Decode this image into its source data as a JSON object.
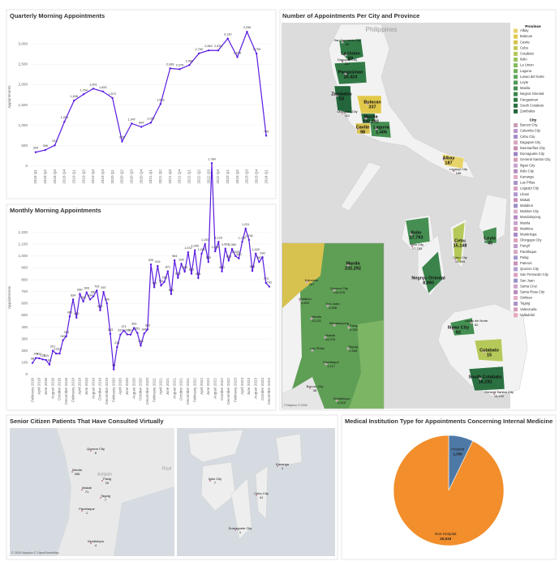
{
  "chart_data": [
    {
      "type": "line",
      "title": "Quarterly Morning Appointments",
      "y_label": "Appointments",
      "color": "#5a1be0",
      "grid": true,
      "categories": [
        "2018 Q1",
        "2018 Q2",
        "2018 Q3",
        "2018 Q4",
        "2019 Q1",
        "2019 Q2",
        "2019 Q3",
        "2019 Q4",
        "2020 Q1",
        "2020 Q2",
        "2020 Q3",
        "2020 Q4",
        "2021 Q1",
        "2021 Q2",
        "2021 Q3",
        "2021 Q4",
        "2022 Q1",
        "2022 Q2",
        "2022 Q3",
        "2022 Q4",
        "2023 Q1",
        "2023 Q2",
        "2023 Q3",
        "2023 Q4",
        "2024 Q1"
      ],
      "values": [
        343,
        396,
        513,
        1091,
        1608,
        1764,
        1901,
        1833,
        1672,
        606,
        1047,
        964,
        1067,
        1526,
        2399,
        2379,
        2480,
        2765,
        2840,
        2839,
        3130,
        2676,
        3296,
        2759,
        749
      ],
      "value_labels": [
        "343",
        "396",
        "513",
        "1,091",
        "1,608",
        "1,764",
        "1,901",
        "1,833",
        "1,672",
        "606",
        "1,047",
        "964",
        "1,067",
        "1,526",
        "2,399",
        "2,379",
        "2,480",
        "2,765",
        "2,840",
        "2,839",
        "3,130",
        "2,676",
        "3,296",
        "2,759",
        "749"
      ],
      "ylim": [
        0,
        3400
      ],
      "yticks": [
        0,
        500,
        {
          "value": 1000,
          "label": "1,000"
        },
        {
          "value": 1500,
          "label": "1,500"
        },
        {
          "value": 2000,
          "label": "2,000"
        },
        {
          "value": 2500,
          "label": "2,500"
        },
        {
          "value": 3000,
          "label": "3,000"
        }
      ]
    },
    {
      "type": "line",
      "title": "Monthly Morning Appointments",
      "y_label": "Appointments",
      "color": "#5a1be0",
      "grid": true,
      "categories": [
        "February 2018",
        null,
        "April 2018",
        null,
        "June 2018",
        null,
        "August 2018",
        null,
        "October 2018",
        null,
        "December 2018",
        null,
        "February 2019",
        null,
        "April 2019",
        null,
        "June 2019",
        null,
        "August 2019",
        null,
        "October 2019",
        null,
        "December 2019",
        null,
        "February 2020",
        null,
        "April 2020",
        null,
        "June 2020",
        null,
        "August 2020",
        null,
        "October 2020",
        null,
        "December 2020",
        null,
        "February 2021",
        null,
        "April 2021",
        null,
        "June 2021",
        null,
        "August 2021",
        null,
        "October 2021",
        null,
        "December 2021",
        null,
        "February 2022",
        null,
        "April 2022",
        null,
        "June 2022",
        null,
        "August 2022",
        null,
        "October 2022",
        null,
        "December 2022",
        null,
        "February 2023",
        null,
        "April 2023",
        null,
        "June 2023",
        null,
        "August 2023",
        null,
        "October 2023",
        null,
        "December 2023"
      ],
      "values": [
        98,
        140,
        137,
        128,
        123,
        84,
        201,
        177,
        177,
        289,
        323,
        490,
        634,
        480,
        680,
        616,
        693,
        634,
        660,
        709,
        542,
        697,
        600,
        343,
        44,
        231,
        337,
        371,
        339,
        337,
        393,
        351,
        245,
        346,
        380,
        929,
        737,
        916,
        751,
        783,
        871,
        679,
        964,
        816,
        934,
        869,
        1032,
        851,
        1049,
        814,
        1020,
        1100,
        950,
        1784,
        1040,
        1120,
        870,
        1063,
        963,
        1060,
        1000,
        980,
        1120,
        1231,
        1136,
        875,
        1020,
        950,
        990,
        773,
        742
      ],
      "value_labels": [
        "98",
        "140",
        "137",
        "128",
        "123",
        "84",
        "201",
        "177",
        "177",
        "289",
        "323",
        "490",
        "634",
        "480",
        "680",
        "616",
        "693",
        "634",
        "660",
        "709",
        "542",
        "697",
        "600",
        "343",
        "44",
        "231",
        "337",
        "371",
        "339",
        "337",
        "393",
        "351",
        "245",
        "346",
        "380",
        "929",
        "737",
        "916",
        "751",
        "783",
        "871",
        "679",
        "964",
        "816",
        "934",
        "869",
        "1,032",
        "851",
        "1,049",
        "814",
        "1,020",
        "1,100",
        "950",
        "1,784",
        "1,040",
        "1,120",
        "870",
        "1,063",
        "963",
        "1,060",
        "1,000",
        "980",
        "1,120",
        "1,231",
        "1,136",
        "875",
        "1,020",
        "950",
        "990",
        "773",
        "742"
      ],
      "ylim": [
        0,
        1300
      ],
      "yticks": [
        0,
        100,
        200,
        300,
        400,
        500,
        600,
        700,
        800,
        900,
        {
          "value": 1000,
          "label": "1,000"
        },
        {
          "value": 1100,
          "label": "1,100"
        },
        {
          "value": 1200,
          "label": "1,200"
        }
      ]
    },
    {
      "type": "pie",
      "title": "Medical Institution Type for Appointments Concerning Internal Medicine",
      "categories": [
        "Hospital",
        "Non-Hospital"
      ],
      "values": [
        2368,
        30519
      ],
      "value_labels": [
        "2,368",
        "30,519"
      ],
      "colors": [
        "#4e79a7",
        "#f28e2b"
      ]
    }
  ],
  "maps": {
    "main": {
      "title": "Number of Appointments Per City and Province",
      "country_label": "Philippines",
      "province_legend_title": "Province",
      "provinces": [
        {
          "name": "Albay",
          "color": "#e8d36a"
        },
        {
          "name": "Bulacan",
          "color": "#e2c84a"
        },
        {
          "name": "Cavite",
          "color": "#d8c24f"
        },
        {
          "name": "Cebu",
          "color": "#c4c85a"
        },
        {
          "name": "Cotabato",
          "color": "#b5c95a"
        },
        {
          "name": "Iloilo",
          "color": "#9cc45e"
        },
        {
          "name": "La Union",
          "color": "#84bb5d"
        },
        {
          "name": "Laguna",
          "color": "#6fb15c"
        },
        {
          "name": "Lanao del Norte",
          "color": "#5fa65a"
        },
        {
          "name": "Leyte",
          "color": "#519b57"
        },
        {
          "name": "Manila",
          "color": "#458f52"
        },
        {
          "name": "Negros Oriental",
          "color": "#3a844c"
        },
        {
          "name": "Pangasinan",
          "color": "#317a46"
        },
        {
          "name": "South Cotabato",
          "color": "#2a7041"
        },
        {
          "name": "Zambales",
          "color": "#23663b"
        }
      ],
      "city_legend_title": "City",
      "cities": [
        {
          "name": "Bacoor City",
          "color": "#c9a0b8"
        },
        {
          "name": "Calamba City",
          "color": "#b895c8"
        },
        {
          "name": "Cebu City",
          "color": "#a48bc9"
        },
        {
          "name": "Dagupan City",
          "color": "#d9a6bf"
        },
        {
          "name": "Dasmariñas City",
          "color": "#c58db0"
        },
        {
          "name": "Dumaguete City",
          "color": "#9d86c2"
        },
        {
          "name": "General Santos City",
          "color": "#d39fb5"
        },
        {
          "name": "Iligan City",
          "color": "#c6a4cf"
        },
        {
          "name": "Iloilo City",
          "color": "#b98ec0"
        },
        {
          "name": "Kananga",
          "color": "#e0a9c4"
        },
        {
          "name": "Las Piñas",
          "color": "#a995cd"
        },
        {
          "name": "Legazpi City",
          "color": "#d5a0bd"
        },
        {
          "name": "Liloan",
          "color": "#b09ad0"
        },
        {
          "name": "Makati",
          "color": "#c98fba"
        },
        {
          "name": "Malabon",
          "color": "#9f8fc7"
        },
        {
          "name": "Malolos City",
          "color": "#dcb0c9"
        },
        {
          "name": "Mandaluyong",
          "color": "#b48ac2"
        },
        {
          "name": "Manila",
          "color": "#c8a3cc"
        },
        {
          "name": "Marikina",
          "color": "#d498b9"
        },
        {
          "name": "Muntinlupa",
          "color": "#a78cc4"
        },
        {
          "name": "Olongapo City",
          "color": "#e1a3bd"
        },
        {
          "name": "Pangil",
          "color": "#bf9bc9"
        },
        {
          "name": "Parañaque",
          "color": "#d3a9c3"
        },
        {
          "name": "Pasig",
          "color": "#a597ce"
        },
        {
          "name": "Pateros",
          "color": "#c892b7"
        },
        {
          "name": "Quezon City",
          "color": "#b19fd0"
        },
        {
          "name": "San Fernando City",
          "color": "#d9a2bb"
        },
        {
          "name": "San Juan",
          "color": "#9b93c8"
        },
        {
          "name": "Santa Cruz",
          "color": "#cfa5c7"
        },
        {
          "name": "Santa Rosa City",
          "color": "#b98cbd"
        },
        {
          "name": "Siniloan",
          "color": "#e3adc6"
        },
        {
          "name": "Taguig",
          "color": "#ab90c6"
        },
        {
          "name": "Valenzuela",
          "color": "#d79ebb"
        },
        {
          "name": "Valladolid",
          "color": "#e6a8c0"
        }
      ],
      "labels": [
        {
          "name": "San Fernando City",
          "value": "66"
        },
        {
          "name": "La Union",
          "value": "69"
        },
        {
          "name": "Dagupan City",
          "value": "287"
        },
        {
          "name": "Pangasinan",
          "value": "30,424"
        },
        {
          "name": "Zambales",
          "value": "53"
        },
        {
          "name": "Olongapo City",
          "value": "112"
        },
        {
          "name": "Bulacan",
          "value": "337"
        },
        {
          "name": "Manila",
          "value": "232,292"
        },
        {
          "name": "Cavite",
          "value": "98"
        },
        {
          "name": "Laguna",
          "value": "1,406"
        },
        {
          "name": "Albay",
          "value": "187"
        },
        {
          "name": "Legazpi City",
          "value": "186"
        },
        {
          "name": "Iloilo",
          "value": "17,793"
        },
        {
          "name": "Iloilo City",
          "value": "17,793"
        },
        {
          "name": "Cebu",
          "value": "15,148"
        },
        {
          "name": "Cebu City",
          "value": "15,394"
        },
        {
          "name": "Leyte",
          "value": "45"
        },
        {
          "name": "Negros Oriental",
          "value": "8,990"
        },
        {
          "name": "Lanao del Norte",
          "value": "62"
        },
        {
          "name": "Iligan City",
          "value": "62"
        },
        {
          "name": "Cotabato",
          "value": "15"
        },
        {
          "name": "South Cotabato",
          "value": "16,192"
        },
        {
          "name": "General Santos City",
          "value": "16,192"
        }
      ],
      "inset_labels": [
        {
          "name": "Manila",
          "value": "232,292"
        },
        {
          "name": "Kalookan",
          "value": "267"
        },
        {
          "name": "Quezon City",
          "value": "144,676"
        },
        {
          "name": "Malabon",
          "value": "4,803"
        },
        {
          "name": "San Juan",
          "value": "3,398"
        },
        {
          "name": "Manila",
          "value": "22,431"
        },
        {
          "name": "Mandaluyong"
        },
        {
          "name": "Pasig",
          "value": "4,333"
        },
        {
          "name": "Makati",
          "value": "44,376"
        },
        {
          "name": "Taguig",
          "value": "1,268"
        },
        {
          "name": "Las Piñas"
        },
        {
          "name": "Parañaque",
          "value": "1,117"
        },
        {
          "name": "Bacoor City",
          "value": "38"
        },
        {
          "name": "Muntinlupa",
          "value": "4,625"
        }
      ],
      "inset_credit": "© Mapbox © OSM"
    },
    "senior": {
      "title": "Senior Citizen Patients That Have Consulted Virtually",
      "labels": [
        {
          "name": "Quezon City",
          "value": "6"
        },
        {
          "name": "Manila",
          "value": "285"
        },
        {
          "name": "Pasig",
          "value": "20"
        },
        {
          "name": "Makati",
          "value": "71"
        },
        {
          "name": "Taguig",
          "value": "7"
        },
        {
          "name": "Parañaque",
          "value": "1"
        },
        {
          "name": "Muntinlupa",
          "value": "4"
        },
        {
          "name": "Iloilo City",
          "value": "7"
        },
        {
          "name": "Kananga",
          "value": "1"
        },
        {
          "name": "Cebu City",
          "value": "41"
        },
        {
          "name": "Dumaguete City",
          "value": "1"
        }
      ],
      "basemap_labels": [
        "Antipolo",
        "Rizal"
      ],
      "credit": "© 2024 Mapbox © OpenStreetMap"
    }
  }
}
